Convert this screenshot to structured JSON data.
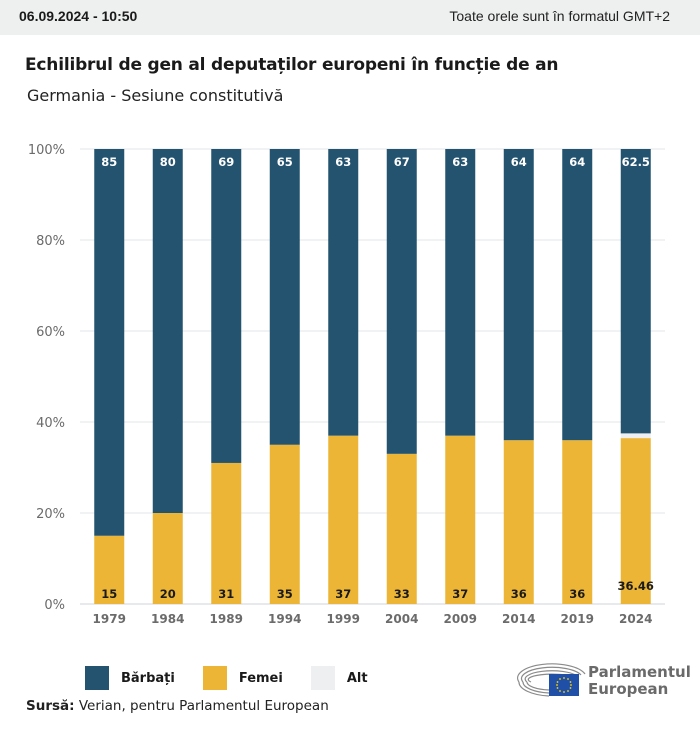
{
  "header": {
    "datetime": "06.09.2024 - 10:50",
    "timezone_note": "Toate orele sunt în formatul GMT+2"
  },
  "title": "Echilibrul de gen al deputaților europeni în funcție de an",
  "subtitle": "Germania - Sesiune constitutivă",
  "colors": {
    "men": "#24536f",
    "women": "#ecb535",
    "other": "#eeeff0"
  },
  "chart_data": {
    "type": "bar",
    "stacked": true,
    "title": "Echilibrul de gen al deputaților europeni în funcție de an",
    "subtitle": "Germania - Sesiune constitutivă",
    "xlabel": "",
    "ylabel": "",
    "ylim": [
      0,
      100
    ],
    "y_ticks": [
      "0%",
      "20%",
      "40%",
      "60%",
      "80%",
      "100%"
    ],
    "y_tick_values": [
      0,
      20,
      40,
      60,
      80,
      100
    ],
    "grid": true,
    "categories": [
      "1979",
      "1984",
      "1989",
      "1994",
      "1999",
      "2004",
      "2009",
      "2014",
      "2019",
      "2024"
    ],
    "series": [
      {
        "name": "Femei",
        "values": [
          15,
          20,
          31,
          35,
          37,
          33,
          37,
          36,
          36,
          36.46
        ],
        "labels": [
          "15",
          "20",
          "31",
          "35",
          "37",
          "33",
          "37",
          "36",
          "36",
          "36.46"
        ]
      },
      {
        "name": "Alt",
        "values": [
          0,
          0,
          0,
          0,
          0,
          0,
          0,
          0,
          0,
          1.04
        ],
        "labels": [
          "",
          "",
          "",
          "",
          "",
          "",
          "",
          "",
          "",
          ""
        ]
      },
      {
        "name": "Bărbați",
        "values": [
          85,
          80,
          69,
          65,
          63,
          67,
          63,
          64,
          64,
          62.5
        ],
        "labels": [
          "85",
          "80",
          "69",
          "65",
          "63",
          "67",
          "63",
          "64",
          "64",
          "62.5"
        ]
      }
    ],
    "legend": {
      "position": "bottom-left",
      "entries": [
        "Bărbați",
        "Femei",
        "Alt"
      ]
    }
  },
  "legend": {
    "items": [
      {
        "label": "Bărbați"
      },
      {
        "label": "Femei"
      },
      {
        "label": "Alt"
      }
    ]
  },
  "source": {
    "label": "Sursă:",
    "text": " Verian, pentru Parlamentul European"
  },
  "logo": {
    "line1": "Parlamentul",
    "line2": "European"
  }
}
